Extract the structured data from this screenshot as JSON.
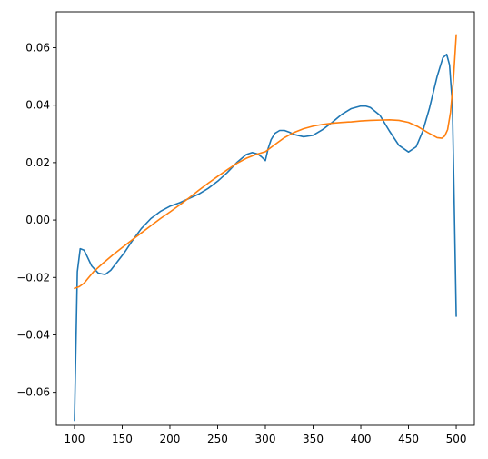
{
  "chart_data": {
    "type": "line",
    "title": "",
    "xlabel": "",
    "ylabel": "",
    "xlim": [
      81,
      519
    ],
    "ylim": [
      -0.0715,
      0.0725
    ],
    "grid": false,
    "xticks": [
      100,
      150,
      200,
      250,
      300,
      350,
      400,
      450,
      500
    ],
    "xtick_labels": [
      "100",
      "150",
      "200",
      "250",
      "300",
      "350",
      "400",
      "450",
      "500"
    ],
    "yticks": [
      -0.06,
      -0.04,
      -0.02,
      0.0,
      0.02,
      0.04,
      0.06
    ],
    "ytick_labels": [
      "−0.06",
      "−0.04",
      "−0.02",
      "0.00",
      "0.02",
      "0.04",
      "0.06"
    ],
    "series": [
      {
        "color": "#1f77b4",
        "x": [
          100,
          103,
          106,
          110,
          113,
          118,
          125,
          132,
          138,
          145,
          152,
          160,
          170,
          180,
          190,
          200,
          210,
          220,
          230,
          240,
          250,
          260,
          270,
          280,
          286,
          292,
          296,
          300,
          303,
          306,
          310,
          315,
          320,
          325,
          330,
          340,
          350,
          360,
          370,
          380,
          390,
          400,
          405,
          410,
          420,
          430,
          440,
          450,
          458,
          465,
          472,
          480,
          486,
          490,
          493,
          496,
          498,
          500
        ],
        "y": [
          -0.0698,
          -0.018,
          -0.01,
          -0.0105,
          -0.0125,
          -0.016,
          -0.0185,
          -0.019,
          -0.0175,
          -0.0145,
          -0.0115,
          -0.0075,
          -0.003,
          0.0005,
          0.003,
          0.0048,
          0.006,
          0.0075,
          0.009,
          0.011,
          0.0135,
          0.0165,
          0.02,
          0.0228,
          0.0235,
          0.023,
          0.022,
          0.0207,
          0.025,
          0.028,
          0.0302,
          0.0312,
          0.0312,
          0.0306,
          0.0298,
          0.029,
          0.0295,
          0.0315,
          0.034,
          0.0368,
          0.0388,
          0.0397,
          0.0397,
          0.0392,
          0.0365,
          0.031,
          0.026,
          0.0237,
          0.0255,
          0.031,
          0.039,
          0.05,
          0.0565,
          0.0577,
          0.054,
          0.04,
          0.004,
          -0.0335
        ]
      },
      {
        "color": "#ff7f0e",
        "x": [
          100,
          105,
          110,
          115,
          120,
          130,
          140,
          150,
          160,
          170,
          180,
          190,
          200,
          210,
          220,
          230,
          240,
          250,
          260,
          270,
          280,
          290,
          300,
          310,
          320,
          330,
          340,
          350,
          360,
          370,
          380,
          390,
          400,
          410,
          420,
          430,
          440,
          450,
          460,
          470,
          480,
          485,
          488,
          491,
          494,
          497,
          500
        ],
        "y": [
          -0.0238,
          -0.0232,
          -0.022,
          -0.02,
          -0.018,
          -0.015,
          -0.0122,
          -0.0096,
          -0.007,
          -0.0045,
          -0.002,
          0.0005,
          0.0028,
          0.0052,
          0.0077,
          0.0103,
          0.0128,
          0.0152,
          0.0175,
          0.0197,
          0.0215,
          0.0228,
          0.0238,
          0.0263,
          0.0287,
          0.0305,
          0.0318,
          0.0327,
          0.0333,
          0.0337,
          0.034,
          0.0342,
          0.0345,
          0.0347,
          0.0348,
          0.0349,
          0.0347,
          0.034,
          0.0325,
          0.0305,
          0.0287,
          0.0285,
          0.0293,
          0.0315,
          0.0375,
          0.0485,
          0.0645
        ]
      }
    ]
  }
}
